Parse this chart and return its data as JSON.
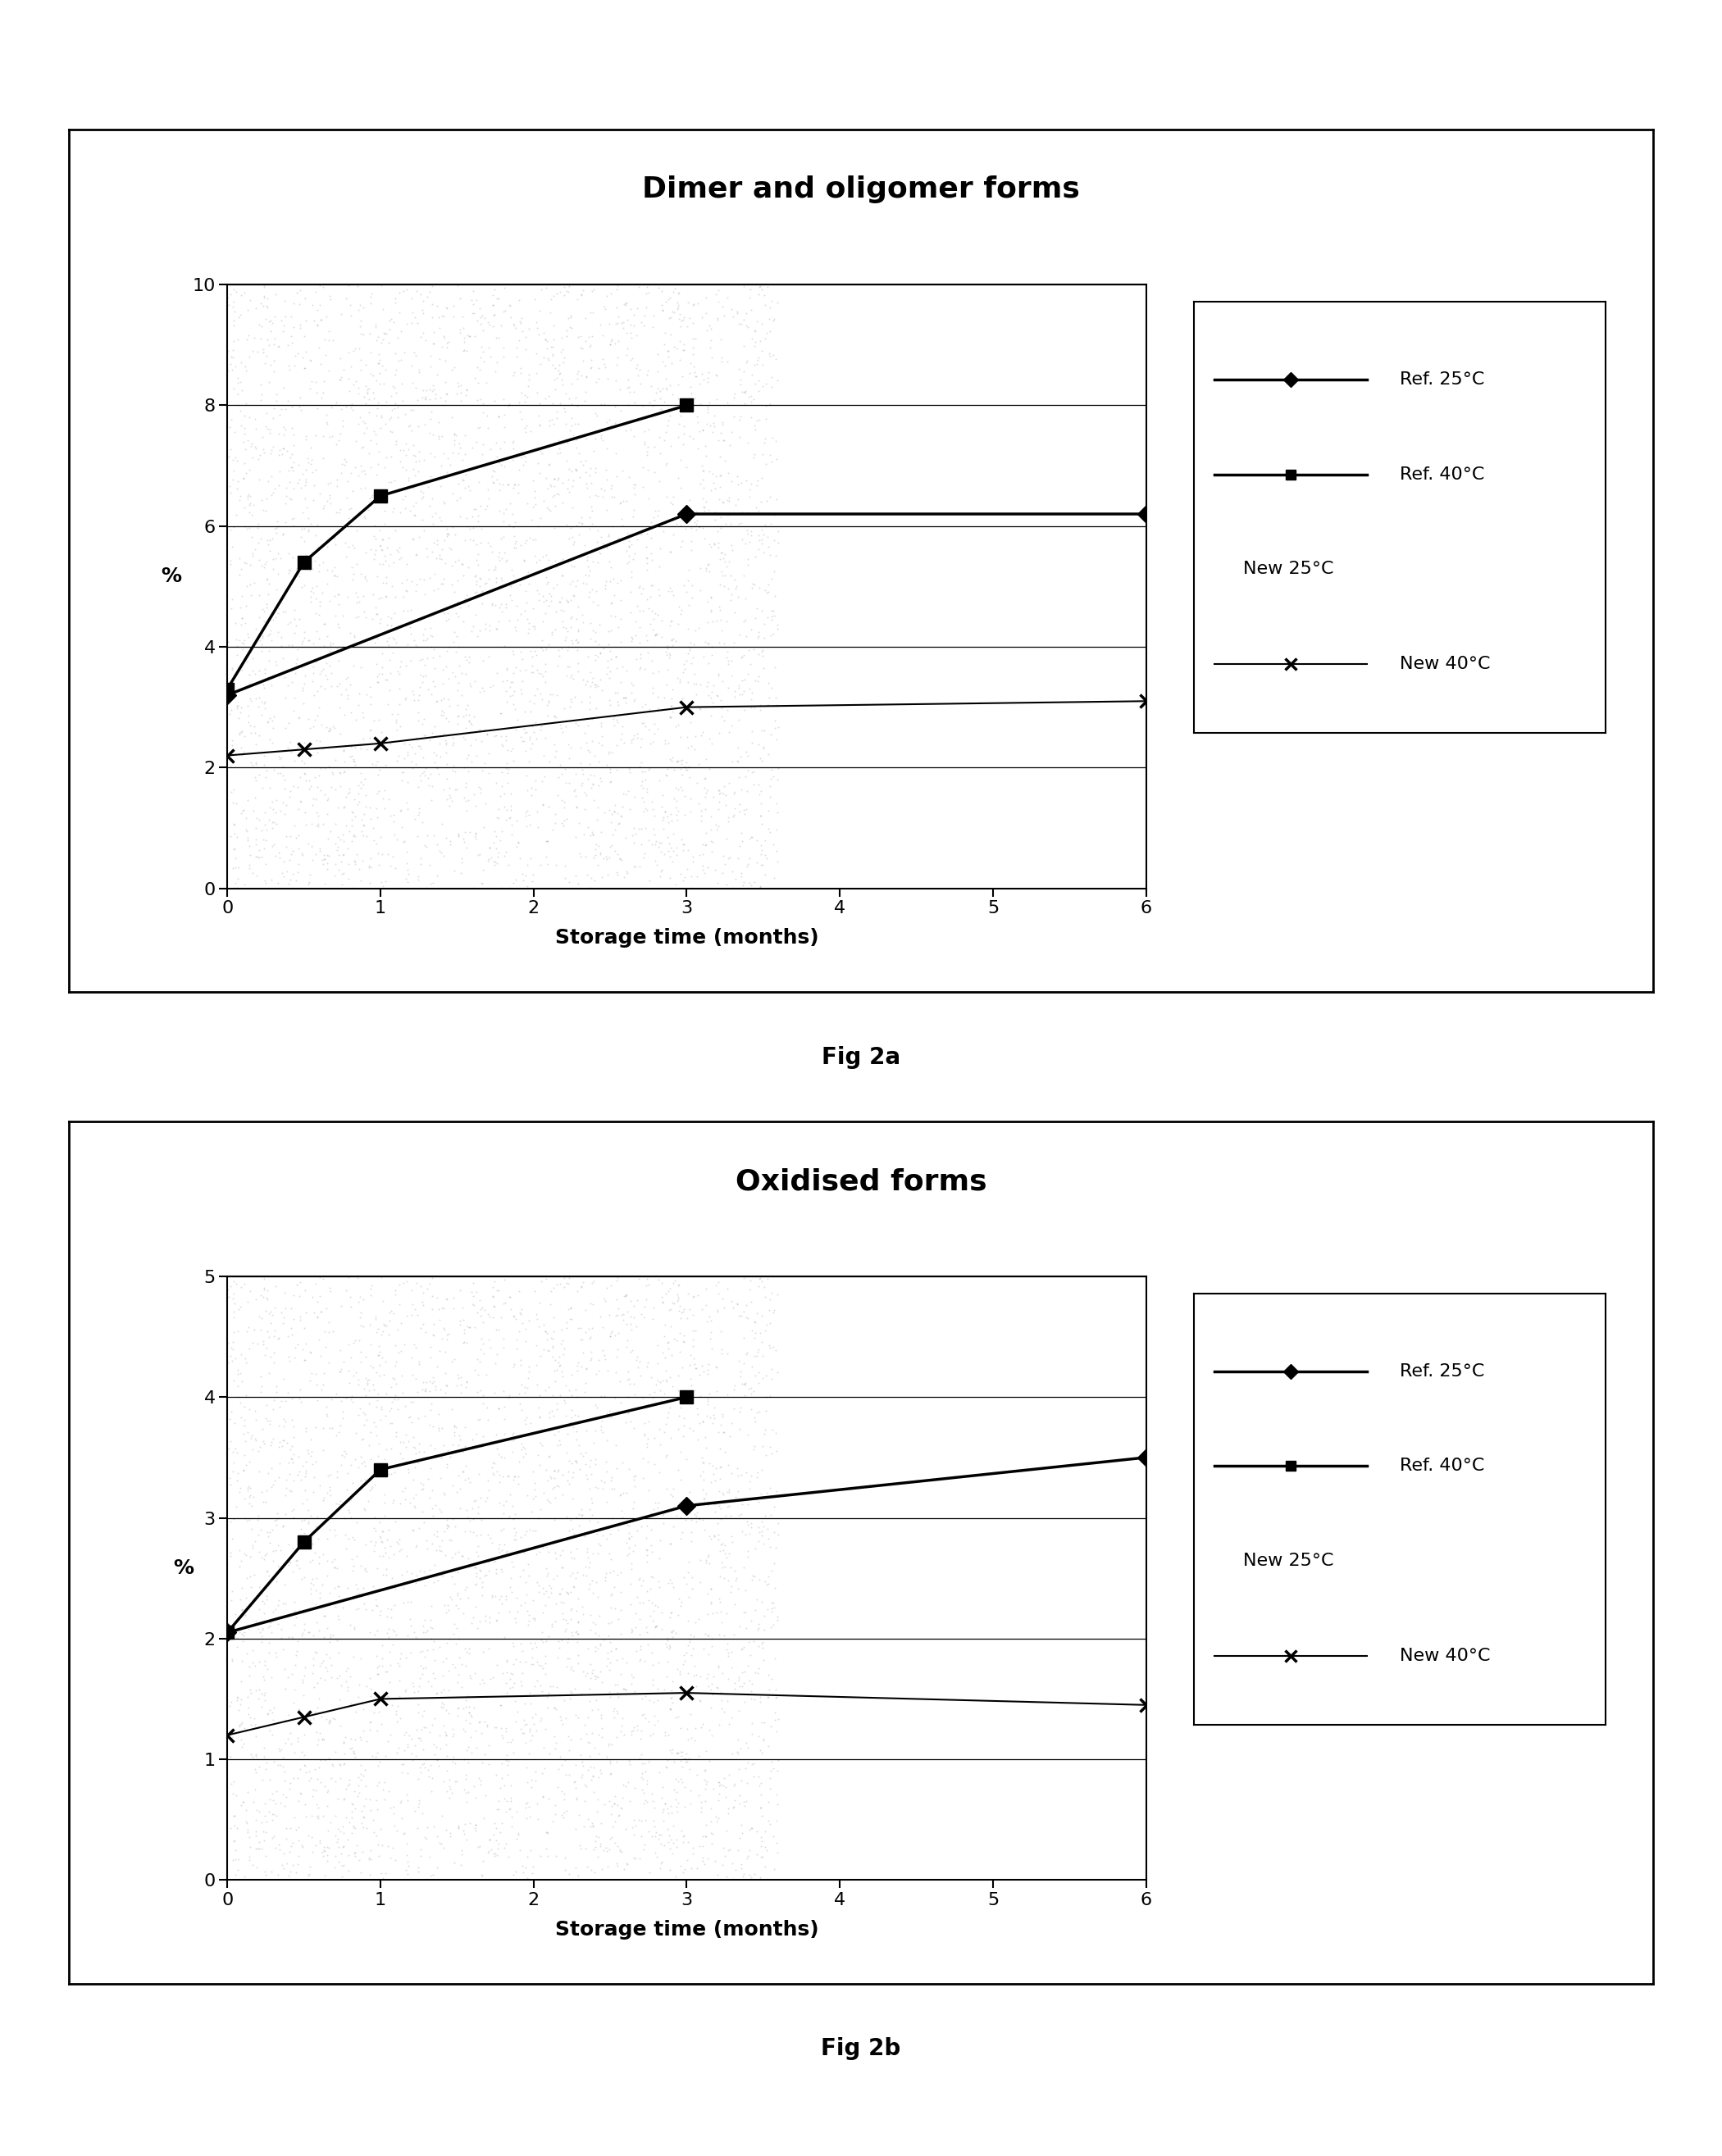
{
  "fig2a": {
    "title": "Dimer and oligomer forms",
    "title_fontweight": "bold",
    "xlabel": "Storage time (months)",
    "ylabel": "%",
    "ylim": [
      0,
      10
    ],
    "yticks": [
      0,
      2,
      4,
      6,
      8,
      10
    ],
    "xlim": [
      0,
      6
    ],
    "xticks": [
      0,
      1,
      2,
      3,
      4,
      5,
      6
    ],
    "series": {
      "ref25": {
        "label": "Ref. 25°C",
        "x": [
          0,
          3,
          6
        ],
        "y": [
          3.2,
          6.2,
          6.2
        ],
        "marker": "D",
        "color": "#000000",
        "linestyle": "-"
      },
      "ref40": {
        "label": "Ref. 40°C",
        "x": [
          0,
          0.5,
          1,
          3
        ],
        "y": [
          3.3,
          5.4,
          6.5,
          8.0
        ],
        "marker": "s",
        "color": "#000000",
        "linestyle": "-"
      },
      "new25": {
        "label": "New 25°C",
        "x": [],
        "y": []
      },
      "new40": {
        "label": "New 40°C",
        "x": [
          0,
          0.5,
          1,
          3,
          6
        ],
        "y": [
          2.2,
          2.3,
          2.4,
          3.0,
          3.1
        ],
        "marker": "x",
        "color": "#000000",
        "linestyle": "-"
      }
    },
    "caption": "Fig 2a"
  },
  "fig2b": {
    "title": "Oxidised forms",
    "title_fontweight": "bold",
    "xlabel": "Storage time (months)",
    "ylabel": "%",
    "ylim": [
      0,
      5
    ],
    "yticks": [
      0,
      1,
      2,
      3,
      4,
      5
    ],
    "xlim": [
      0,
      6
    ],
    "xticks": [
      0,
      1,
      2,
      3,
      4,
      5,
      6
    ],
    "series": {
      "ref25": {
        "label": "Ref. 25°C",
        "x": [
          0,
          3,
          6
        ],
        "y": [
          2.05,
          3.1,
          3.5
        ],
        "marker": "D",
        "color": "#000000",
        "linestyle": "-"
      },
      "ref40": {
        "label": "Ref. 40°C",
        "x": [
          0,
          0.5,
          1,
          3
        ],
        "y": [
          2.05,
          2.8,
          3.4,
          4.0
        ],
        "marker": "s",
        "color": "#000000",
        "linestyle": "-"
      },
      "new25": {
        "label": "New 25°C",
        "x": [],
        "y": []
      },
      "new40": {
        "label": "New 40°C",
        "x": [
          0,
          0.5,
          1,
          3,
          6
        ],
        "y": [
          1.2,
          1.35,
          1.5,
          1.55,
          1.45
        ],
        "marker": "x",
        "color": "#000000",
        "linestyle": "-"
      }
    },
    "caption": "Fig 2b"
  },
  "background_color": "#ffffff",
  "title_fontsize": 26,
  "axis_label_fontsize": 18,
  "tick_fontsize": 16,
  "legend_fontsize": 16,
  "caption_fontsize": 20
}
